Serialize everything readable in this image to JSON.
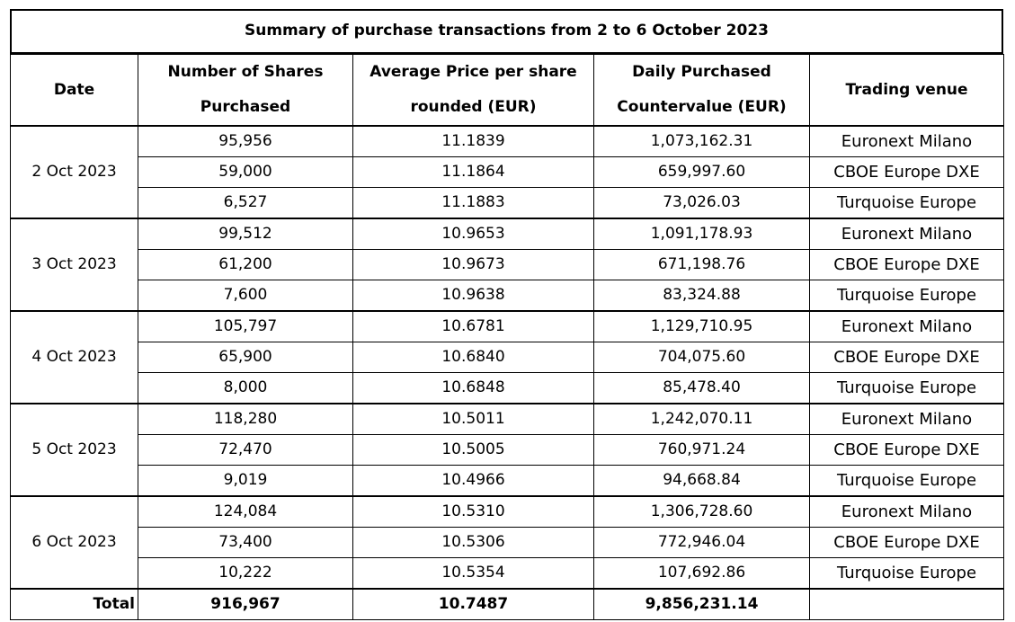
{
  "title": "Summary of purchase transactions from 2 to 6 October 2023",
  "headers": {
    "date": "Date",
    "shares_line1": "Number of Shares",
    "shares_line2": "Purchased",
    "price_line1": "Average Price per share",
    "price_line2": "rounded (EUR)",
    "countervalue_line1": "Daily Purchased",
    "countervalue_line2": "Countervalue (EUR)",
    "venue": "Trading venue"
  },
  "groups": [
    {
      "date": "2 Oct 2023",
      "rows": [
        {
          "shares": "95,956",
          "price": "11.1839",
          "countervalue": "1,073,162.31",
          "venue": "Euronext Milano"
        },
        {
          "shares": "59,000",
          "price": "11.1864",
          "countervalue": "659,997.60",
          "venue": "CBOE Europe DXE"
        },
        {
          "shares": "6,527",
          "price": "11.1883",
          "countervalue": "73,026.03",
          "venue": "Turquoise Europe"
        }
      ]
    },
    {
      "date": "3 Oct 2023",
      "rows": [
        {
          "shares": "99,512",
          "price": "10.9653",
          "countervalue": "1,091,178.93",
          "venue": "Euronext Milano"
        },
        {
          "shares": "61,200",
          "price": "10.9673",
          "countervalue": "671,198.76",
          "venue": "CBOE Europe DXE"
        },
        {
          "shares": "7,600",
          "price": "10.9638",
          "countervalue": "83,324.88",
          "venue": "Turquoise Europe"
        }
      ]
    },
    {
      "date": "4 Oct 2023",
      "rows": [
        {
          "shares": "105,797",
          "price": "10.6781",
          "countervalue": "1,129,710.95",
          "venue": "Euronext Milano"
        },
        {
          "shares": "65,900",
          "price": "10.6840",
          "countervalue": "704,075.60",
          "venue": "CBOE Europe DXE"
        },
        {
          "shares": "8,000",
          "price": "10.6848",
          "countervalue": "85,478.40",
          "venue": "Turquoise Europe"
        }
      ]
    },
    {
      "date": "5 Oct 2023",
      "rows": [
        {
          "shares": "118,280",
          "price": "10.5011",
          "countervalue": "1,242,070.11",
          "venue": "Euronext Milano"
        },
        {
          "shares": "72,470",
          "price": "10.5005",
          "countervalue": "760,971.24",
          "venue": "CBOE Europe DXE"
        },
        {
          "shares": "9,019",
          "price": "10.4966",
          "countervalue": "94,668.84",
          "venue": "Turquoise Europe"
        }
      ]
    },
    {
      "date": "6 Oct 2023",
      "rows": [
        {
          "shares": "124,084",
          "price": "10.5310",
          "countervalue": "1,306,728.60",
          "venue": "Euronext Milano"
        },
        {
          "shares": "73,400",
          "price": "10.5306",
          "countervalue": "772,946.04",
          "venue": "CBOE Europe DXE"
        },
        {
          "shares": "10,222",
          "price": "10.5354",
          "countervalue": "107,692.86",
          "venue": "Turquoise Europe"
        }
      ]
    }
  ],
  "total": {
    "label": "Total",
    "shares": "916,967",
    "price": "10.7487",
    "countervalue": "9,856,231.14",
    "venue": ""
  }
}
